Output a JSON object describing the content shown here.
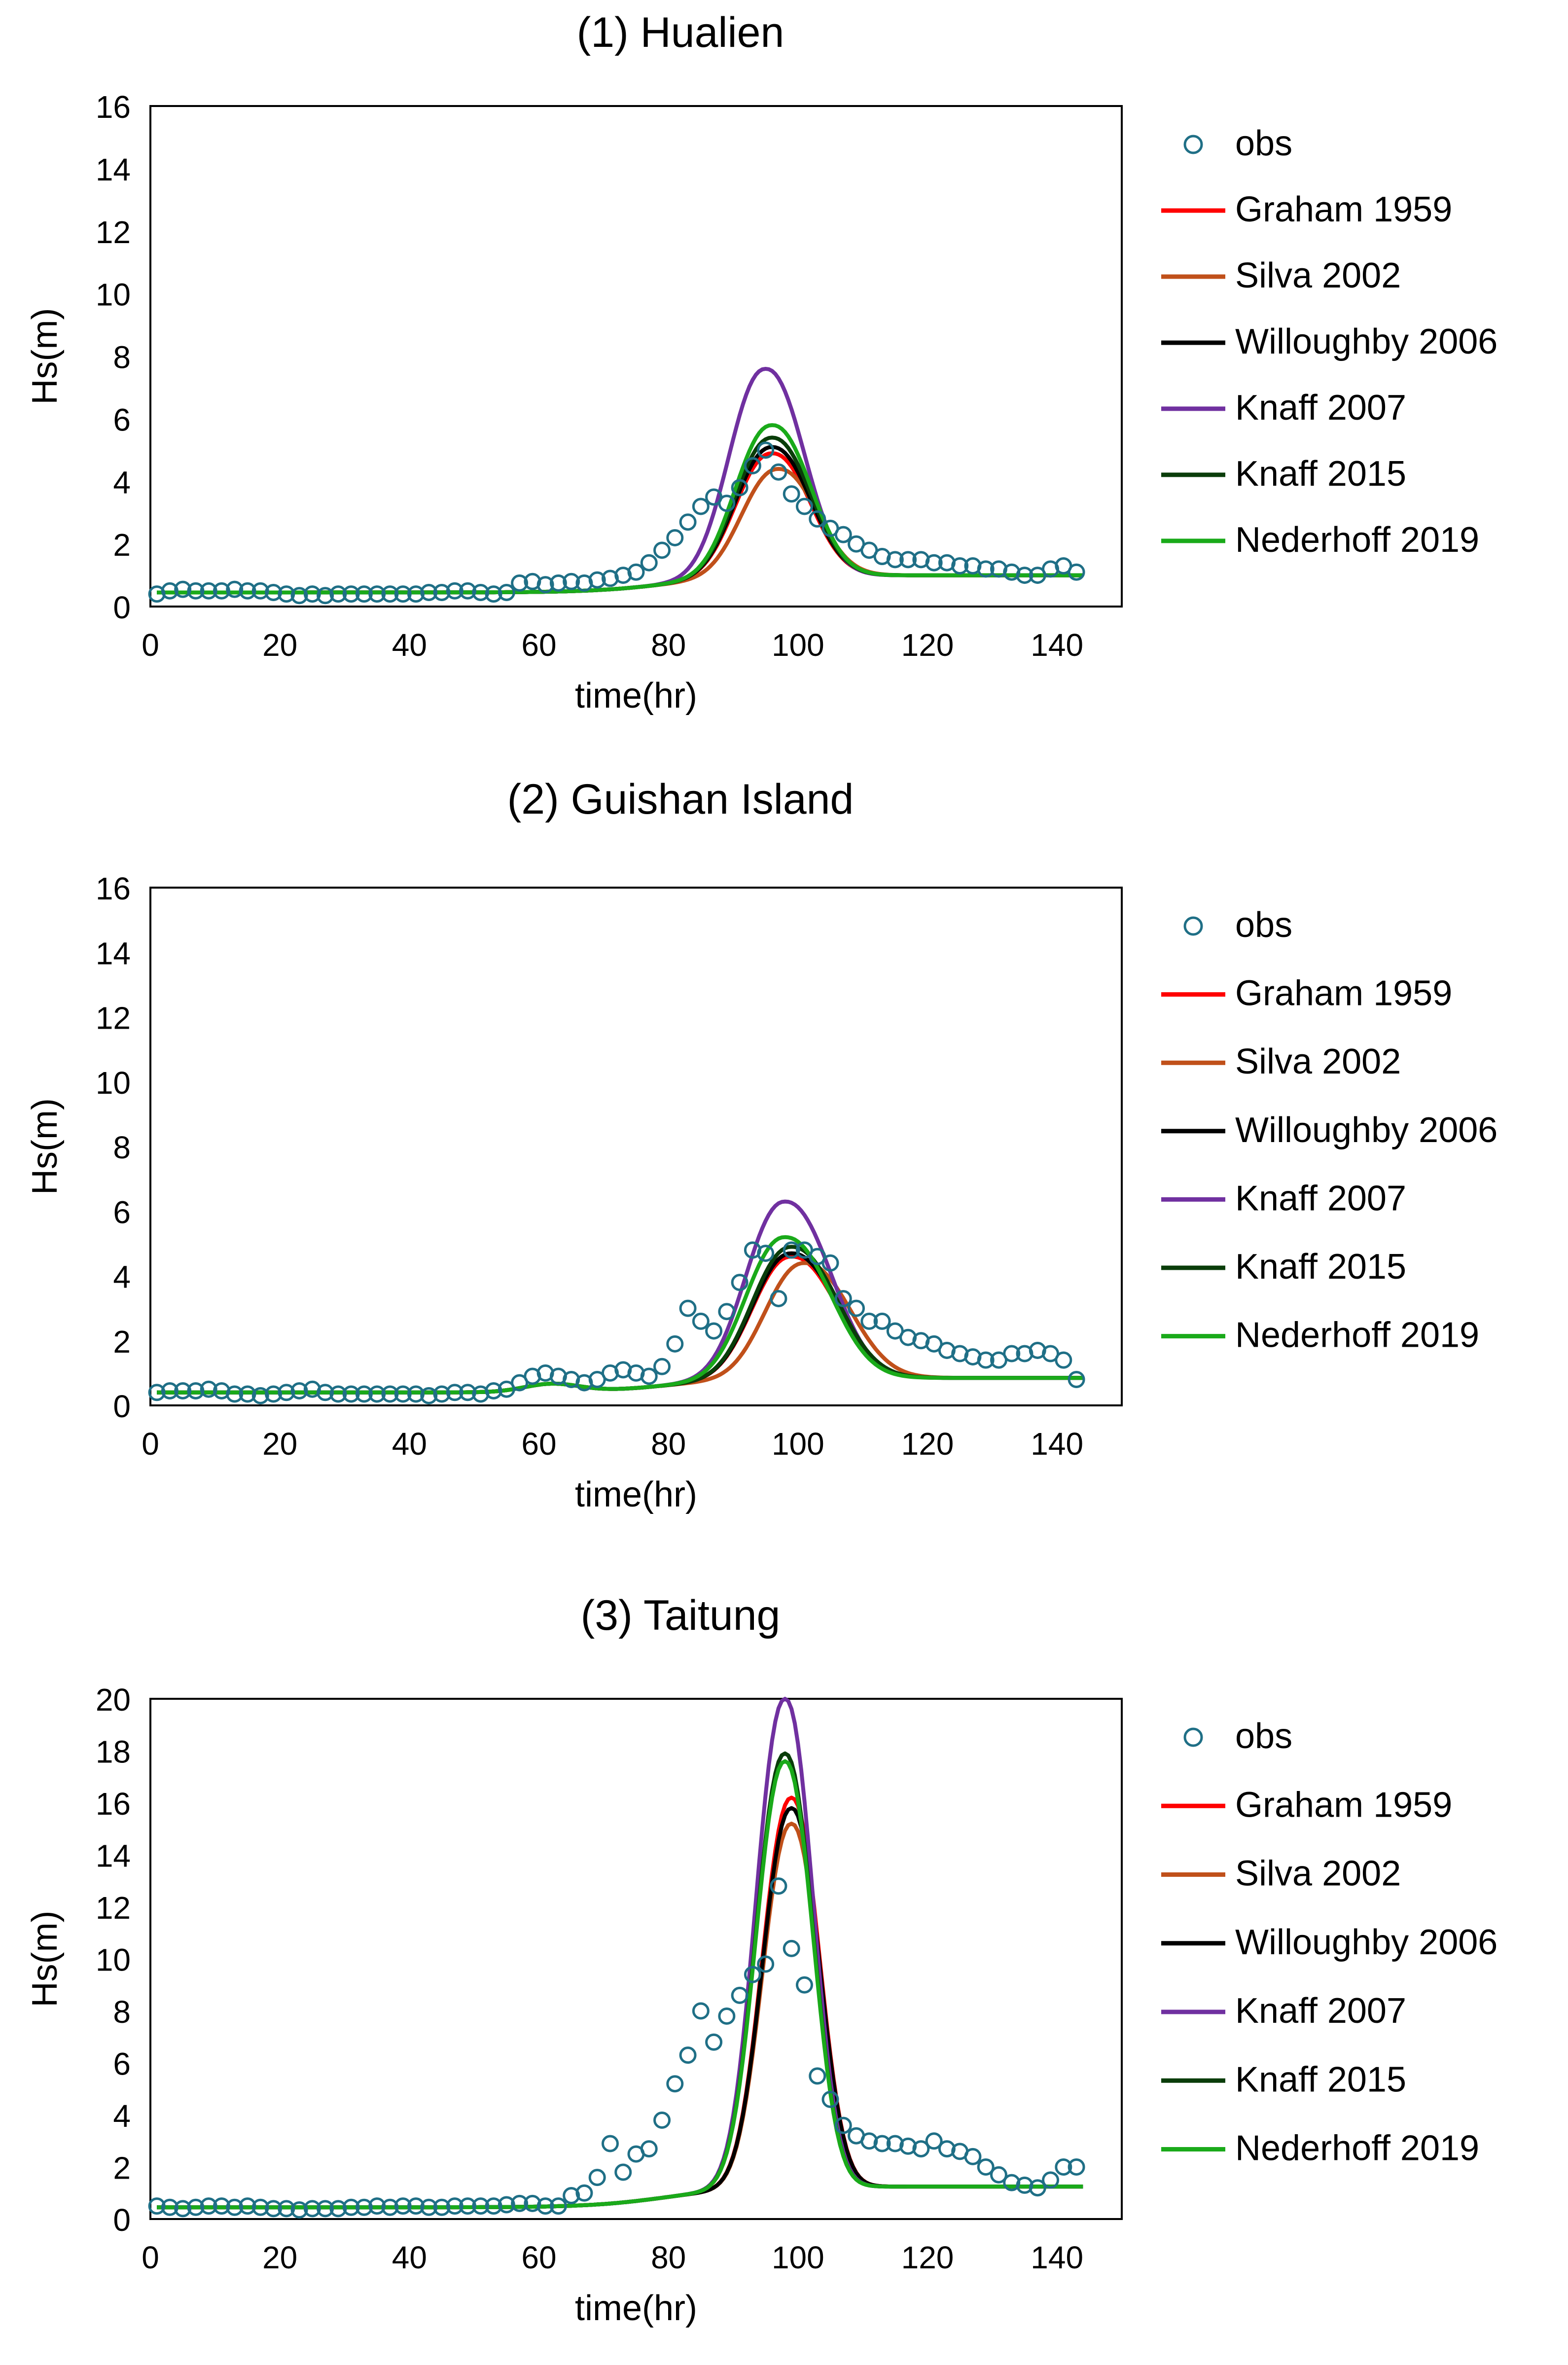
{
  "chart_data": [
    {
      "type": "line",
      "title": "(1) Hualien",
      "xlabel": "time(hr)",
      "ylabel": "Hs(m)",
      "xlim": [
        0,
        150
      ],
      "ylim": [
        0,
        16
      ],
      "xticks": [
        0,
        20,
        40,
        60,
        80,
        100,
        120,
        140
      ],
      "yticks": [
        0,
        2,
        4,
        6,
        8,
        10,
        12,
        14,
        16
      ],
      "xtick_labels": [
        "0",
        "20",
        "40",
        "60",
        "80",
        "100",
        "120",
        "140"
      ],
      "ytick_labels": [
        "0",
        "2",
        "4",
        "6",
        "8",
        "10",
        "12",
        "14",
        "16"
      ],
      "grid": false,
      "legend": "right",
      "obs": {
        "name": "obs",
        "x": [
          1,
          3,
          5,
          7,
          9,
          11,
          13,
          15,
          17,
          19,
          21,
          23,
          25,
          27,
          29,
          31,
          33,
          35,
          37,
          39,
          41,
          43,
          45,
          47,
          49,
          51,
          53,
          55,
          57,
          59,
          61,
          63,
          65,
          67,
          69,
          71,
          73,
          75,
          77,
          79,
          81,
          83,
          85,
          87,
          89,
          91,
          93,
          95,
          97,
          99,
          101,
          103,
          105,
          107,
          109,
          111,
          113,
          115,
          117,
          119,
          121,
          123,
          125,
          127,
          129,
          131,
          133,
          135,
          137,
          139,
          141,
          143
        ],
        "y": [
          0.4,
          0.5,
          0.55,
          0.5,
          0.5,
          0.5,
          0.55,
          0.5,
          0.5,
          0.45,
          0.4,
          0.35,
          0.4,
          0.35,
          0.4,
          0.4,
          0.4,
          0.4,
          0.4,
          0.4,
          0.4,
          0.45,
          0.45,
          0.5,
          0.5,
          0.45,
          0.4,
          0.45,
          0.75,
          0.8,
          0.7,
          0.75,
          0.8,
          0.75,
          0.85,
          0.9,
          1.0,
          1.1,
          1.4,
          1.8,
          2.2,
          2.7,
          3.2,
          3.5,
          3.3,
          3.8,
          4.5,
          5.0,
          4.3,
          3.6,
          3.2,
          2.8,
          2.5,
          2.3,
          2.0,
          1.8,
          1.6,
          1.5,
          1.5,
          1.5,
          1.4,
          1.4,
          1.3,
          1.3,
          1.2,
          1.2,
          1.1,
          1.0,
          1.0,
          1.2,
          1.3,
          1.1
        ]
      },
      "series": [
        {
          "name": "Graham 1959",
          "color": "#ff0000",
          "peak": 4.9,
          "peak_time": 96
        },
        {
          "name": "Silva 2002",
          "color": "#c0501a",
          "peak": 4.4,
          "peak_time": 97
        },
        {
          "name": "Willoughby 2006",
          "color": "#000000",
          "peak": 5.1,
          "peak_time": 96
        },
        {
          "name": "Knaff 2007",
          "color": "#7030a0",
          "peak": 7.6,
          "peak_time": 95
        },
        {
          "name": "Knaff 2015",
          "color": "#0a3d0a",
          "peak": 5.4,
          "peak_time": 96
        },
        {
          "name": "Nederhoff 2019",
          "color": "#1aaa1a",
          "peak": 5.8,
          "peak_time": 96
        }
      ]
    },
    {
      "type": "line",
      "title": "(2) Guishan Island",
      "xlabel": "time(hr)",
      "ylabel": "Hs(m)",
      "xlim": [
        0,
        150
      ],
      "ylim": [
        0,
        16
      ],
      "xticks": [
        0,
        20,
        40,
        60,
        80,
        100,
        120,
        140
      ],
      "yticks": [
        0,
        2,
        4,
        6,
        8,
        10,
        12,
        14,
        16
      ],
      "xtick_labels": [
        "0",
        "20",
        "40",
        "60",
        "80",
        "100",
        "120",
        "140"
      ],
      "ytick_labels": [
        "0",
        "2",
        "4",
        "6",
        "8",
        "10",
        "12",
        "14",
        "16"
      ],
      "grid": false,
      "legend": "right",
      "obs": {
        "name": "obs",
        "x": [
          1,
          3,
          5,
          7,
          9,
          11,
          13,
          15,
          17,
          19,
          21,
          23,
          25,
          27,
          29,
          31,
          33,
          35,
          37,
          39,
          41,
          43,
          45,
          47,
          49,
          51,
          53,
          55,
          57,
          59,
          61,
          63,
          65,
          67,
          69,
          71,
          73,
          75,
          77,
          79,
          81,
          83,
          85,
          87,
          89,
          91,
          93,
          95,
          97,
          99,
          101,
          103,
          105,
          107,
          109,
          111,
          113,
          115,
          117,
          119,
          121,
          123,
          125,
          127,
          129,
          131,
          133,
          135,
          137,
          139,
          141,
          143
        ],
        "y": [
          0.4,
          0.45,
          0.45,
          0.45,
          0.5,
          0.45,
          0.35,
          0.35,
          0.3,
          0.35,
          0.4,
          0.45,
          0.5,
          0.4,
          0.35,
          0.35,
          0.35,
          0.35,
          0.35,
          0.35,
          0.35,
          0.3,
          0.35,
          0.4,
          0.4,
          0.35,
          0.45,
          0.5,
          0.7,
          0.9,
          1.0,
          0.9,
          0.8,
          0.7,
          0.8,
          1.0,
          1.1,
          1.0,
          0.9,
          1.2,
          1.9,
          3.0,
          2.6,
          2.3,
          2.9,
          3.8,
          4.8,
          4.7,
          3.3,
          4.8,
          4.8,
          4.6,
          4.4,
          3.3,
          3.0,
          2.6,
          2.6,
          2.3,
          2.1,
          2.0,
          1.9,
          1.7,
          1.6,
          1.5,
          1.4,
          1.4,
          1.6,
          1.6,
          1.7,
          1.6,
          1.4,
          0.8
        ]
      },
      "series": [
        {
          "name": "Graham 1959",
          "color": "#ff0000",
          "peak": 4.6,
          "peak_time": 99
        },
        {
          "name": "Silva 2002",
          "color": "#c0501a",
          "peak": 4.4,
          "peak_time": 101
        },
        {
          "name": "Willoughby 2006",
          "color": "#000000",
          "peak": 4.7,
          "peak_time": 99
        },
        {
          "name": "Knaff 2007",
          "color": "#7030a0",
          "peak": 6.3,
          "peak_time": 98
        },
        {
          "name": "Knaff 2015",
          "color": "#0a3d0a",
          "peak": 4.9,
          "peak_time": 99
        },
        {
          "name": "Nederhoff 2019",
          "color": "#1aaa1a",
          "peak": 5.2,
          "peak_time": 98
        }
      ]
    },
    {
      "type": "line",
      "title": "(3) Taitung",
      "xlabel": "time(hr)",
      "ylabel": "Hs(m)",
      "xlim": [
        0,
        150
      ],
      "ylim": [
        0,
        20
      ],
      "xticks": [
        0,
        20,
        40,
        60,
        80,
        100,
        120,
        140
      ],
      "yticks": [
        0,
        2,
        4,
        6,
        8,
        10,
        12,
        14,
        16,
        18,
        20
      ],
      "xtick_labels": [
        "0",
        "20",
        "40",
        "60",
        "80",
        "100",
        "120",
        "140"
      ],
      "ytick_labels": [
        "0",
        "2",
        "4",
        "6",
        "8",
        "10",
        "12",
        "14",
        "16",
        "18",
        "20"
      ],
      "grid": false,
      "legend": "right",
      "obs": {
        "name": "obs",
        "x": [
          1,
          3,
          5,
          7,
          9,
          11,
          13,
          15,
          17,
          19,
          21,
          23,
          25,
          27,
          29,
          31,
          33,
          35,
          37,
          39,
          41,
          43,
          45,
          47,
          49,
          51,
          53,
          55,
          57,
          59,
          61,
          63,
          65,
          67,
          69,
          71,
          73,
          75,
          77,
          79,
          81,
          83,
          85,
          87,
          89,
          91,
          93,
          95,
          97,
          99,
          101,
          103,
          105,
          107,
          109,
          111,
          113,
          115,
          117,
          119,
          121,
          123,
          125,
          127,
          129,
          131,
          133,
          135,
          137,
          139,
          141,
          143
        ],
        "y": [
          0.5,
          0.45,
          0.4,
          0.45,
          0.5,
          0.5,
          0.45,
          0.5,
          0.45,
          0.4,
          0.4,
          0.35,
          0.4,
          0.4,
          0.4,
          0.45,
          0.45,
          0.5,
          0.45,
          0.5,
          0.5,
          0.45,
          0.45,
          0.5,
          0.5,
          0.5,
          0.5,
          0.55,
          0.6,
          0.6,
          0.5,
          0.5,
          0.9,
          1.0,
          1.6,
          2.9,
          1.8,
          2.5,
          2.7,
          3.8,
          5.2,
          6.3,
          8.0,
          6.8,
          7.8,
          8.6,
          9.4,
          9.8,
          12.8,
          10.4,
          9.0,
          5.5,
          4.6,
          3.6,
          3.2,
          3.0,
          2.9,
          2.9,
          2.8,
          2.7,
          3.0,
          2.7,
          2.6,
          2.4,
          2.0,
          1.7,
          1.4,
          1.3,
          1.2,
          1.5,
          2.0,
          2.0
        ]
      },
      "series": [
        {
          "name": "Graham 1959",
          "color": "#ff0000",
          "peak": 16.2,
          "peak_time": 99
        },
        {
          "name": "Silva 2002",
          "color": "#c0501a",
          "peak": 15.2,
          "peak_time": 99
        },
        {
          "name": "Willoughby 2006",
          "color": "#000000",
          "peak": 15.8,
          "peak_time": 99
        },
        {
          "name": "Knaff 2007",
          "color": "#7030a0",
          "peak": 20.0,
          "peak_time": 98
        },
        {
          "name": "Knaff 2015",
          "color": "#0a3d0a",
          "peak": 17.9,
          "peak_time": 98
        },
        {
          "name": "Nederhoff 2019",
          "color": "#1aaa1a",
          "peak": 17.6,
          "peak_time": 98
        }
      ]
    }
  ]
}
